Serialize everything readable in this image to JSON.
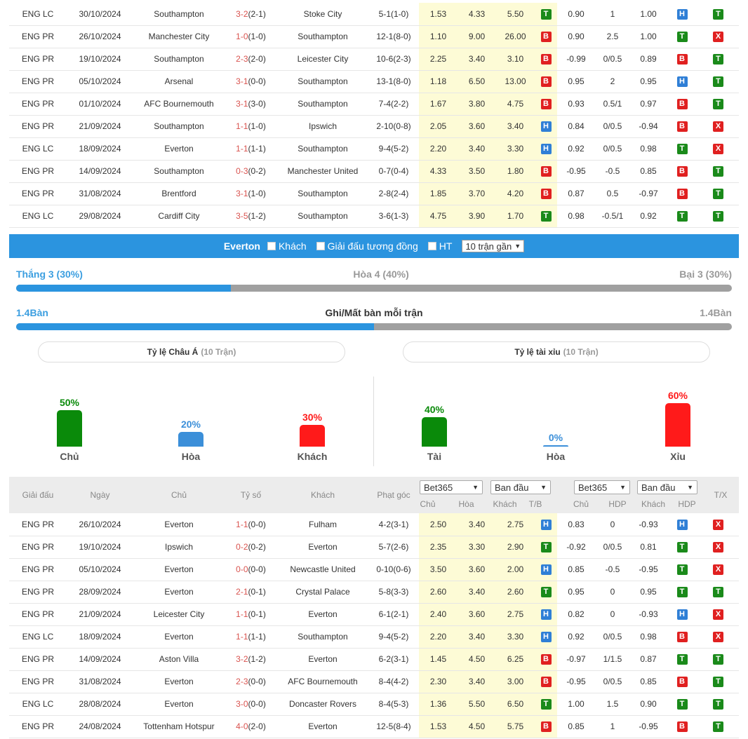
{
  "top_rows": [
    {
      "league": "ENG LC",
      "date": "30/10/2024",
      "home": "Southampton",
      "home_hl": true,
      "score": "3-2",
      "ht": "(2-1)",
      "away": "Stoke City",
      "away_hl": false,
      "corners": "5-1(1-0)",
      "o1": "1.53",
      "o2": "4.33",
      "o3": "5.50",
      "ob": "T",
      "a1": "0.90",
      "a2": "1",
      "a3": "1.00",
      "ab": "H",
      "res": "T"
    },
    {
      "league": "ENG PR",
      "date": "26/10/2024",
      "home": "Manchester City",
      "home_hl": false,
      "score": "1-0",
      "ht": "(1-0)",
      "away": "Southampton",
      "away_hl": true,
      "corners": "12-1(8-0)",
      "o1": "1.10",
      "o2": "9.00",
      "o3": "26.00",
      "ob": "B",
      "a1": "0.90",
      "a2": "2.5",
      "a3": "1.00",
      "ab": "T",
      "res": "X"
    },
    {
      "league": "ENG PR",
      "date": "19/10/2024",
      "home": "Southampton",
      "home_hl": true,
      "score": "2-3",
      "ht": "(2-0)",
      "away": "Leicester City",
      "away_hl": false,
      "corners": "10-6(2-3)",
      "o1": "2.25",
      "o2": "3.40",
      "o3": "3.10",
      "ob": "B",
      "a1": "-0.99",
      "a2": "0/0.5",
      "a3": "0.89",
      "ab": "B",
      "res": "T"
    },
    {
      "league": "ENG PR",
      "date": "05/10/2024",
      "home": "Arsenal",
      "home_hl": false,
      "score": "3-1",
      "ht": "(0-0)",
      "away": "Southampton",
      "away_hl": true,
      "corners": "13-1(8-0)",
      "o1": "1.18",
      "o2": "6.50",
      "o3": "13.00",
      "ob": "B",
      "a1": "0.95",
      "a2": "2",
      "a3": "0.95",
      "ab": "H",
      "res": "T"
    },
    {
      "league": "ENG PR",
      "date": "01/10/2024",
      "home": "AFC Bournemouth",
      "home_hl": false,
      "score": "3-1",
      "ht": "(3-0)",
      "away": "Southampton",
      "away_hl": true,
      "corners": "7-4(2-2)",
      "o1": "1.67",
      "o2": "3.80",
      "o3": "4.75",
      "ob": "B",
      "a1": "0.93",
      "a2": "0.5/1",
      "a3": "0.97",
      "ab": "B",
      "res": "T"
    },
    {
      "league": "ENG PR",
      "date": "21/09/2024",
      "home": "Southampton",
      "home_hl": true,
      "score": "1-1",
      "ht": "(1-0)",
      "away": "Ipswich",
      "away_hl": false,
      "corners": "2-10(0-8)",
      "o1": "2.05",
      "o2": "3.60",
      "o3": "3.40",
      "ob": "H",
      "a1": "0.84",
      "a2": "0/0.5",
      "a3": "-0.94",
      "ab": "B",
      "res": "X"
    },
    {
      "league": "ENG LC",
      "date": "18/09/2024",
      "home": "Everton",
      "home_hl": false,
      "score": "1-1",
      "ht": "(1-1)",
      "away": "Southampton",
      "away_hl": true,
      "corners": "9-4(5-2)",
      "o1": "2.20",
      "o2": "3.40",
      "o3": "3.30",
      "ob": "H",
      "a1": "0.92",
      "a2": "0/0.5",
      "a3": "0.98",
      "ab": "T",
      "res": "X"
    },
    {
      "league": "ENG PR",
      "date": "14/09/2024",
      "home": "Southampton",
      "home_hl": true,
      "score": "0-3",
      "ht": "(0-2)",
      "away": "Manchester United",
      "away_hl": false,
      "corners": "0-7(0-4)",
      "o1": "4.33",
      "o2": "3.50",
      "o3": "1.80",
      "ob": "B",
      "a1": "-0.95",
      "a2": "-0.5",
      "a3": "0.85",
      "ab": "B",
      "res": "T"
    },
    {
      "league": "ENG PR",
      "date": "31/08/2024",
      "home": "Brentford",
      "home_hl": false,
      "score": "3-1",
      "ht": "(1-0)",
      "away": "Southampton",
      "away_hl": true,
      "corners": "2-8(2-4)",
      "o1": "1.85",
      "o2": "3.70",
      "o3": "4.20",
      "ob": "B",
      "a1": "0.87",
      "a2": "0.5",
      "a3": "-0.97",
      "ab": "B",
      "res": "T"
    },
    {
      "league": "ENG LC",
      "date": "29/08/2024",
      "home": "Cardiff City",
      "home_hl": false,
      "score": "3-5",
      "ht": "(1-2)",
      "away": "Southampton",
      "away_hl": true,
      "corners": "3-6(1-3)",
      "o1": "4.75",
      "o2": "3.90",
      "o3": "1.70",
      "ob": "T",
      "a1": "0.98",
      "a2": "-0.5/1",
      "a3": "0.92",
      "ab": "T",
      "res": "T"
    }
  ],
  "filter": {
    "team": "Everton",
    "opt_away": "Khách",
    "opt_same_league": "Giải đấu tương đồng",
    "opt_ht": "HT",
    "recent_select": "10 trận gần"
  },
  "stats": {
    "win": "Thắng 3 (30%)",
    "draw": "Hòa 4 (40%)",
    "loss": "Bại 3 (30%)",
    "win_fraction": 0.3,
    "goals_left": "1.4Bàn",
    "goals_title": "Ghi/Mất bàn mỗi trận",
    "goals_right": "1.4Bàn",
    "goals_fraction": 0.5
  },
  "asia": {
    "title": "Tỷ lệ Châu Á",
    "sub": "(10 Trận)",
    "home_pct": "50%",
    "home_label": "Chủ",
    "home_value": 50,
    "draw_pct": "20%",
    "draw_label": "Hòa",
    "draw_value": 20,
    "away_pct": "30%",
    "away_label": "Khách",
    "away_value": 30
  },
  "ou": {
    "title": "Tỷ lệ tài xỉu",
    "sub": "(10 Trận)",
    "over_pct": "40%",
    "over_label": "Tài",
    "over_value": 40,
    "draw_pct": "0%",
    "draw_label": "Hòa",
    "draw_value": 0,
    "under_pct": "60%",
    "under_label": "Xỉu",
    "under_value": 60
  },
  "colors": {
    "green": "#0a8a0a",
    "blue": "#3b8fd9",
    "red": "#ff1a1a",
    "accent": "#2b94df"
  },
  "header2": {
    "league": "Giải đấu",
    "date": "Ngày",
    "home": "Chủ",
    "score": "Tỷ số",
    "away": "Khách",
    "corners": "Phạt góc",
    "bookmaker1": "Bet365",
    "initial1": "Ban đầu",
    "bookmaker2": "Bet365",
    "initial2": "Ban đầu",
    "h_home": "Chủ",
    "h_draw": "Hòa",
    "h_away": "Khách",
    "h_tb": "T/B",
    "h_home2": "Chủ",
    "h_hdp": "HDP",
    "h_away2": "Khách",
    "h_hdp2": "HDP",
    "h_tx": "T/X"
  },
  "bottom_rows": [
    {
      "league": "ENG PR",
      "date": "26/10/2024",
      "home": "Everton",
      "home_hl": true,
      "score": "1-1",
      "ht": "(0-0)",
      "away": "Fulham",
      "away_hl": false,
      "corners": "4-2(3-1)",
      "o1": "2.50",
      "o2": "3.40",
      "o3": "2.75",
      "ob": "H",
      "a1": "0.83",
      "a2": "0",
      "a3": "-0.93",
      "ab": "H",
      "res": "X"
    },
    {
      "league": "ENG PR",
      "date": "19/10/2024",
      "home": "Ipswich",
      "home_hl": false,
      "score": "0-2",
      "ht": "(0-2)",
      "away": "Everton",
      "away_hl": true,
      "corners": "5-7(2-6)",
      "o1": "2.35",
      "o2": "3.30",
      "o3": "2.90",
      "ob": "T",
      "a1": "-0.92",
      "a2": "0/0.5",
      "a3": "0.81",
      "ab": "T",
      "res": "X"
    },
    {
      "league": "ENG PR",
      "date": "05/10/2024",
      "home": "Everton",
      "home_hl": true,
      "score": "0-0",
      "ht": "(0-0)",
      "away": "Newcastle United",
      "away_hl": false,
      "corners": "0-10(0-6)",
      "o1": "3.50",
      "o2": "3.60",
      "o3": "2.00",
      "ob": "H",
      "a1": "0.85",
      "a2": "-0.5",
      "a3": "-0.95",
      "ab": "T",
      "res": "X"
    },
    {
      "league": "ENG PR",
      "date": "28/09/2024",
      "home": "Everton",
      "home_hl": true,
      "score": "2-1",
      "ht": "(0-1)",
      "away": "Crystal Palace",
      "away_hl": false,
      "corners": "5-8(3-3)",
      "o1": "2.60",
      "o2": "3.40",
      "o3": "2.60",
      "ob": "T",
      "a1": "0.95",
      "a2": "0",
      "a3": "0.95",
      "ab": "T",
      "res": "T"
    },
    {
      "league": "ENG PR",
      "date": "21/09/2024",
      "home": "Leicester City",
      "home_hl": false,
      "score": "1-1",
      "ht": "(0-1)",
      "away": "Everton",
      "away_hl": true,
      "corners": "6-1(2-1)",
      "o1": "2.40",
      "o2": "3.60",
      "o3": "2.75",
      "ob": "H",
      "a1": "0.82",
      "a2": "0",
      "a3": "-0.93",
      "ab": "H",
      "res": "X"
    },
    {
      "league": "ENG LC",
      "date": "18/09/2024",
      "home": "Everton",
      "home_hl": true,
      "score": "1-1",
      "ht": "(1-1)",
      "away": "Southampton",
      "away_hl": false,
      "corners": "9-4(5-2)",
      "o1": "2.20",
      "o2": "3.40",
      "o3": "3.30",
      "ob": "H",
      "a1": "0.92",
      "a2": "0/0.5",
      "a3": "0.98",
      "ab": "B",
      "res": "X"
    },
    {
      "league": "ENG PR",
      "date": "14/09/2024",
      "home": "Aston Villa",
      "home_hl": false,
      "score": "3-2",
      "ht": "(1-2)",
      "away": "Everton",
      "away_hl": true,
      "corners": "6-2(3-1)",
      "o1": "1.45",
      "o2": "4.50",
      "o3": "6.25",
      "ob": "B",
      "a1": "-0.97",
      "a2": "1/1.5",
      "a3": "0.87",
      "ab": "T",
      "res": "T"
    },
    {
      "league": "ENG PR",
      "date": "31/08/2024",
      "home": "Everton",
      "home_hl": true,
      "score": "2-3",
      "ht": "(0-0)",
      "away": "AFC Bournemouth",
      "away_hl": false,
      "corners": "8-4(4-2)",
      "o1": "2.30",
      "o2": "3.40",
      "o3": "3.00",
      "ob": "B",
      "a1": "-0.95",
      "a2": "0/0.5",
      "a3": "0.85",
      "ab": "B",
      "res": "T"
    },
    {
      "league": "ENG LC",
      "date": "28/08/2024",
      "home": "Everton",
      "home_hl": true,
      "score": "3-0",
      "ht": "(0-0)",
      "away": "Doncaster Rovers",
      "away_hl": false,
      "corners": "8-4(5-3)",
      "o1": "1.36",
      "o2": "5.50",
      "o3": "6.50",
      "ob": "T",
      "a1": "1.00",
      "a2": "1.5",
      "a3": "0.90",
      "ab": "T",
      "res": "T"
    },
    {
      "league": "ENG PR",
      "date": "24/08/2024",
      "home": "Tottenham Hotspur",
      "home_hl": false,
      "score": "4-0",
      "ht": "(2-0)",
      "away": "Everton",
      "away_hl": true,
      "corners": "12-5(8-4)",
      "o1": "1.53",
      "o2": "4.50",
      "o3": "5.75",
      "ob": "B",
      "a1": "0.85",
      "a2": "1",
      "a3": "-0.95",
      "ab": "B",
      "res": "T"
    }
  ]
}
